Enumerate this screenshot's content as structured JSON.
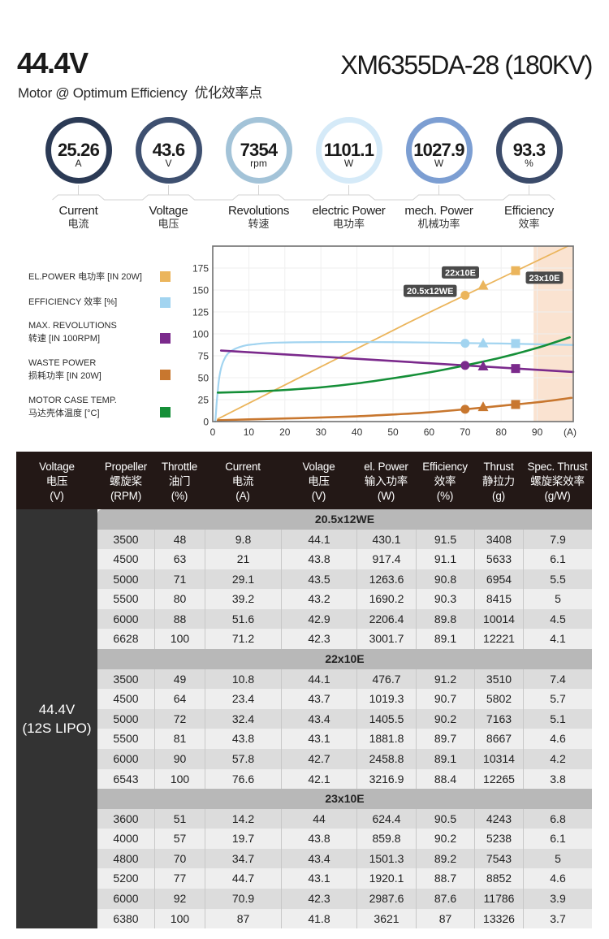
{
  "header": {
    "voltage_title": "44.4V",
    "model": "XM6355DA-28 (180KV)",
    "subtitle": "Motor @ Optimum Efficiency  优化效率点"
  },
  "metrics": [
    {
      "value": "25.26",
      "unit": "A",
      "label": "Current",
      "label_cn": "电流",
      "ring_color": "#2B3A55"
    },
    {
      "value": "43.6",
      "unit": "V",
      "label": "Voltage",
      "label_cn": "电压",
      "ring_color": "#3E5070"
    },
    {
      "value": "7354",
      "unit": "rpm",
      "label": "Revolutions",
      "label_cn": "转速",
      "ring_color": "#A3C3D8"
    },
    {
      "value": "1101.1",
      "unit": "W",
      "label": "electric Power",
      "label_cn": "电功率",
      "ring_color": "#D5EAF8"
    },
    {
      "value": "1027.9",
      "unit": "W",
      "label": "mech. Power",
      "label_cn": "机械功率",
      "ring_color": "#7C9ED2"
    },
    {
      "value": "93.3",
      "unit": "%",
      "label": "Efficiency",
      "label_cn": "效率",
      "ring_color": "#3B4B6A"
    }
  ],
  "chart_data": {
    "type": "line",
    "title": "",
    "xlabel": "(A)",
    "ylabel": "",
    "xlim": [
      0,
      100
    ],
    "ylim": [
      0,
      200
    ],
    "x_ticks": [
      0,
      10,
      20,
      30,
      40,
      50,
      60,
      70,
      80,
      90
    ],
    "y_ticks": [
      0,
      25,
      50,
      75,
      100,
      125,
      150,
      175
    ],
    "grid": true,
    "legend_position": "left",
    "shaded_region": {
      "x_from": 89,
      "x_to": 100,
      "color": "#FAE3D1"
    },
    "marker_points": [
      {
        "propeller": "20.5x12WE",
        "shape": "circle",
        "x": 70
      },
      {
        "propeller": "22x10E",
        "shape": "triangle",
        "x": 75
      },
      {
        "propeller": "23x10E",
        "shape": "square",
        "x": 84
      }
    ],
    "series": [
      {
        "label_lines": [
          "EL.POWER 电功率 [IN 20W]"
        ],
        "color": "#EBB55C",
        "points": [
          [
            1.4,
            3
          ],
          [
            51,
            106
          ],
          [
            70,
            144
          ],
          [
            98.5,
            200
          ]
        ],
        "marker_values": [
          144,
          155,
          172
        ]
      },
      {
        "label_lines": [
          "EFFICIENCY 效率 [%]"
        ],
        "color": "#A2D4F0",
        "points": [
          [
            0.7,
            0
          ],
          [
            0.9,
            10
          ],
          [
            1.1,
            22
          ],
          [
            1.4,
            35
          ],
          [
            1.7,
            47
          ],
          [
            2.1,
            57
          ],
          [
            2.6,
            65
          ],
          [
            3.2,
            71
          ],
          [
            3.9,
            76
          ],
          [
            4.8,
            79.5
          ],
          [
            6,
            82.5
          ],
          [
            7.5,
            85
          ],
          [
            9.3,
            87
          ],
          [
            11.3,
            88
          ],
          [
            14,
            89.2
          ],
          [
            18,
            90
          ],
          [
            23,
            90.4
          ],
          [
            30,
            90.6
          ],
          [
            40,
            90.7
          ],
          [
            50,
            90.5
          ],
          [
            60,
            90.1
          ],
          [
            70,
            89.5
          ],
          [
            80,
            89
          ],
          [
            90,
            88.2
          ],
          [
            100,
            87.3
          ]
        ],
        "marker_values": [
          89.2,
          89.2,
          89
        ]
      },
      {
        "label_lines": [
          "MAX. REVOLUTIONS",
          "转速 [IN 100RPM]"
        ],
        "color": "#7B2A8C",
        "points": [
          [
            2.3,
            81
          ],
          [
            100,
            56.5
          ]
        ],
        "marker_values": [
          64,
          63,
          60.5
        ]
      },
      {
        "label_lines": [
          "WASTE POWER",
          "损耗功率 [IN 20W]"
        ],
        "color": "#C8772F",
        "points": [
          [
            1.4,
            1.5
          ],
          [
            10,
            2.5
          ],
          [
            20,
            3.5
          ],
          [
            28.6,
            4.5
          ],
          [
            40,
            6
          ],
          [
            51,
            8.3
          ],
          [
            60,
            10.5
          ],
          [
            70,
            14
          ],
          [
            80,
            18
          ],
          [
            90,
            22
          ],
          [
            99.5,
            27
          ]
        ],
        "marker_values": [
          14,
          16.5,
          19.5
        ]
      },
      {
        "label_lines": [
          "MOTOR CASE TEMP.",
          "马达壳体温度 [°C]"
        ],
        "color": "#158F38",
        "points": [
          [
            1.4,
            33
          ],
          [
            10,
            34
          ],
          [
            20,
            36
          ],
          [
            30,
            39
          ],
          [
            40,
            43.5
          ],
          [
            51,
            50
          ],
          [
            60,
            56
          ],
          [
            70,
            64
          ],
          [
            80,
            73
          ],
          [
            90,
            84
          ],
          [
            99,
            96
          ]
        ],
        "marker_values": null
      }
    ],
    "annotations": [
      {
        "text": "20.5x12WE",
        "x": 60.3,
        "y": 149
      },
      {
        "text": "22x10E",
        "x": 68.7,
        "y": 170
      },
      {
        "text": "23x10E",
        "x": 92,
        "y": 164
      }
    ]
  },
  "table": {
    "columns": [
      {
        "en": "Voltage",
        "cn": "电压",
        "unit": "(V)"
      },
      {
        "en": "Propeller",
        "cn": "螺旋桨",
        "unit": "(RPM)"
      },
      {
        "en": "Throttle",
        "cn": "油门",
        "unit": "(%)"
      },
      {
        "en": "Current",
        "cn": "电流",
        "unit": "(A)"
      },
      {
        "en": "Volage",
        "cn": "电压",
        "unit": "(V)"
      },
      {
        "en": "el. Power",
        "cn": "输入功率",
        "unit": "(W)"
      },
      {
        "en": "Efficiency",
        "cn": "效率",
        "unit": "(%)"
      },
      {
        "en": "Thrust",
        "cn": "静拉力",
        "unit": "(g)"
      },
      {
        "en": "Spec. Thrust",
        "cn": "螺旋桨效率",
        "unit": "(g/W)"
      }
    ],
    "voltage_cell": {
      "line1": "44.4V",
      "line2": "(12S LIPO)"
    },
    "sections": [
      {
        "propeller": "20.5x12WE",
        "rows": [
          [
            "3500",
            "48",
            "9.8",
            "44.1",
            "430.1",
            "91.5",
            "3408",
            "7.9"
          ],
          [
            "4500",
            "63",
            "21",
            "43.8",
            "917.4",
            "91.1",
            "5633",
            "6.1"
          ],
          [
            "5000",
            "71",
            "29.1",
            "43.5",
            "1263.6",
            "90.8",
            "6954",
            "5.5"
          ],
          [
            "5500",
            "80",
            "39.2",
            "43.2",
            "1690.2",
            "90.3",
            "8415",
            "5"
          ],
          [
            "6000",
            "88",
            "51.6",
            "42.9",
            "2206.4",
            "89.8",
            "10014",
            "4.5"
          ],
          [
            "6628",
            "100",
            "71.2",
            "42.3",
            "3001.7",
            "89.1",
            "12221",
            "4.1"
          ]
        ]
      },
      {
        "propeller": "22x10E",
        "rows": [
          [
            "3500",
            "49",
            "10.8",
            "44.1",
            "476.7",
            "91.2",
            "3510",
            "7.4"
          ],
          [
            "4500",
            "64",
            "23.4",
            "43.7",
            "1019.3",
            "90.7",
            "5802",
            "5.7"
          ],
          [
            "5000",
            "72",
            "32.4",
            "43.4",
            "1405.5",
            "90.2",
            "7163",
            "5.1"
          ],
          [
            "5500",
            "81",
            "43.8",
            "43.1",
            "1881.8",
            "89.7",
            "8667",
            "4.6"
          ],
          [
            "6000",
            "90",
            "57.8",
            "42.7",
            "2458.8",
            "89.1",
            "10314",
            "4.2"
          ],
          [
            "6543",
            "100",
            "76.6",
            "42.1",
            "3216.9",
            "88.4",
            "12265",
            "3.8"
          ]
        ]
      },
      {
        "propeller": "23x10E",
        "rows": [
          [
            "3600",
            "51",
            "14.2",
            "44",
            "624.4",
            "90.5",
            "4243",
            "6.8"
          ],
          [
            "4000",
            "57",
            "19.7",
            "43.8",
            "859.8",
            "90.2",
            "5238",
            "6.1"
          ],
          [
            "4800",
            "70",
            "34.7",
            "43.4",
            "1501.3",
            "89.2",
            "7543",
            "5"
          ],
          [
            "5200",
            "77",
            "44.7",
            "43.1",
            "1920.1",
            "88.7",
            "8852",
            "4.6"
          ],
          [
            "6000",
            "92",
            "70.9",
            "42.3",
            "2987.6",
            "87.6",
            "11786",
            "3.9"
          ],
          [
            "6380",
            "100",
            "87",
            "41.8",
            "3621",
            "87",
            "13326",
            "3.7"
          ]
        ]
      }
    ]
  }
}
